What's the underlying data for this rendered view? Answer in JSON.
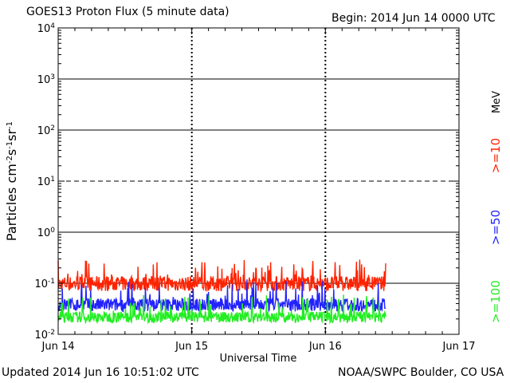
{
  "header": {
    "title": "GOES13 Proton Flux (5 minute data)",
    "begin": "Begin: 2014 Jun 14 0000 UTC"
  },
  "footer": {
    "updated": "Updated 2014 Jun 16 10:51:02 UTC",
    "credit": "NOAA/SWPC Boulder, CO USA"
  },
  "chart_data": {
    "type": "line",
    "title": "GOES13 Proton Flux (5 minute data)",
    "xlabel": "Universal Time",
    "ylabel": "Particles cm-2s-1sr-1",
    "y_scale": "log",
    "ylim": [
      0.01,
      10000
    ],
    "y_ticks": [
      {
        "base": "10",
        "exp": "-2"
      },
      {
        "base": "10",
        "exp": "-1"
      },
      {
        "base": "10",
        "exp": "0"
      },
      {
        "base": "10",
        "exp": "1"
      },
      {
        "base": "10",
        "exp": "2"
      },
      {
        "base": "10",
        "exp": "3"
      },
      {
        "base": "10",
        "exp": "4"
      }
    ],
    "x_range_days": [
      0,
      3
    ],
    "x_ticks": [
      "Jun 14",
      "Jun 15",
      "Jun 16",
      "Jun 17"
    ],
    "data_end_day": 2.45,
    "grid": true,
    "dashed_threshold_line": 10,
    "legend": {
      "unit": "MeV",
      "placement": "right"
    },
    "series": [
      {
        "name": ">=10",
        "color": "#ff2200",
        "typical": 0.12,
        "min": 0.07,
        "max": 0.3
      },
      {
        "name": ">=50",
        "color": "#2222ff",
        "typical": 0.045,
        "min": 0.028,
        "max": 0.12
      },
      {
        "name": ">=100",
        "color": "#22ee22",
        "typical": 0.025,
        "min": 0.017,
        "max": 0.06
      }
    ]
  }
}
